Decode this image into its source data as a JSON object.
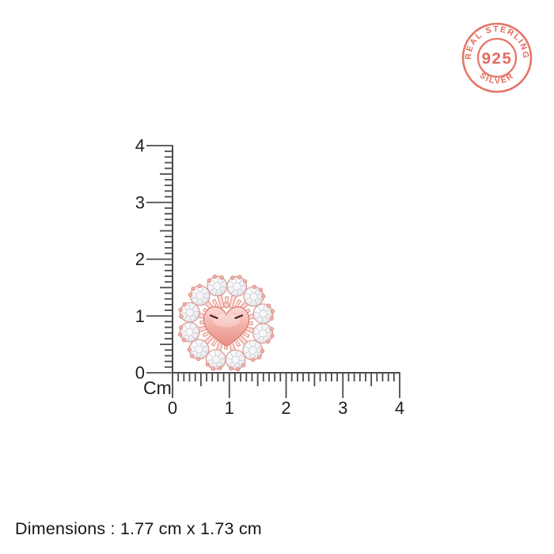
{
  "stamp": {
    "top_text": "REAL STERLING",
    "center_text": "925",
    "bottom_text": "SILVER",
    "color": "#e4695c"
  },
  "ruler": {
    "unit_label": "Cm",
    "vertical_labels": [
      "0",
      "1",
      "2",
      "3",
      "4"
    ],
    "horizontal_labels": [
      "0",
      "1",
      "2",
      "3",
      "4"
    ],
    "line_color": "#4b4b4b",
    "label_color": "#1f1f1f"
  },
  "product": {
    "name": "rose gold heart stud earring with round crystal halo",
    "stone_count": 12,
    "metal_color": "#e9998f",
    "metal_light_color": "#fcdcd7",
    "metal_dark_color": "#e78f85",
    "stone_color": "#f1f1f4",
    "facet_color": "#bfbfc8"
  },
  "footer": {
    "dimensions_text": "Dimensions : 1.77 cm x 1.73 cm"
  }
}
